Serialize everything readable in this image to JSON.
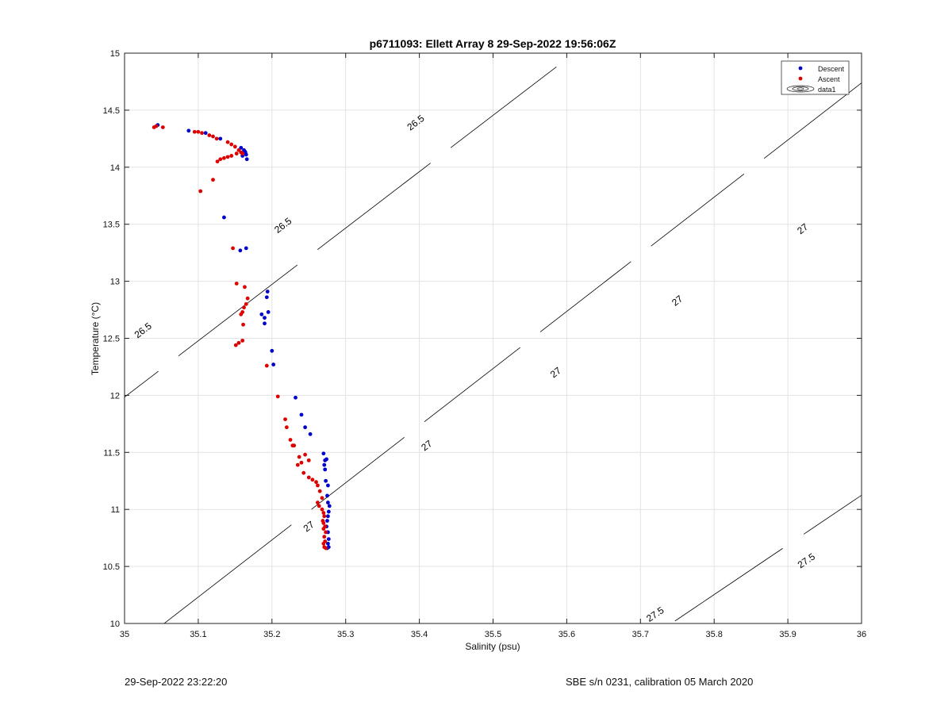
{
  "chart_data": {
    "type": "scatter",
    "title": "p6711093: Ellett Array 8 29-Sep-2022 19:56:06Z",
    "xlabel": "Salinity (psu)",
    "ylabel": "Temperature (°C)",
    "xlim": [
      35,
      36
    ],
    "ylim": [
      10,
      15
    ],
    "xticks": [
      "35",
      "35.1",
      "35.2",
      "35.3",
      "35.4",
      "35.5",
      "35.6",
      "35.7",
      "35.8",
      "35.9",
      "36"
    ],
    "yticks": [
      "10",
      "10.5",
      "11",
      "11.5",
      "12",
      "12.5",
      "13",
      "13.5",
      "14",
      "14.5",
      "15"
    ],
    "grid": true,
    "legend": {
      "position": "top-right",
      "entries": [
        "Descent",
        "Ascent",
        "data1"
      ]
    },
    "series": [
      {
        "name": "Descent",
        "color": "#0000cc",
        "points": [
          [
            35.045,
            14.37
          ],
          [
            35.087,
            14.32
          ],
          [
            35.11,
            14.3
          ],
          [
            35.13,
            14.25
          ],
          [
            35.158,
            14.17
          ],
          [
            35.162,
            14.15
          ],
          [
            35.164,
            14.13
          ],
          [
            35.165,
            14.11
          ],
          [
            35.166,
            14.07
          ],
          [
            35.16,
            14.1
          ],
          [
            35.163,
            14.14
          ],
          [
            35.135,
            13.56
          ],
          [
            35.157,
            13.27
          ],
          [
            35.165,
            13.29
          ],
          [
            35.194,
            12.91
          ],
          [
            35.193,
            12.86
          ],
          [
            35.186,
            12.71
          ],
          [
            35.19,
            12.68
          ],
          [
            35.19,
            12.63
          ],
          [
            35.195,
            12.73
          ],
          [
            35.2,
            12.39
          ],
          [
            35.202,
            12.27
          ],
          [
            35.232,
            11.98
          ],
          [
            35.24,
            11.83
          ],
          [
            35.245,
            11.72
          ],
          [
            35.252,
            11.66
          ],
          [
            35.27,
            11.49
          ],
          [
            35.272,
            11.43
          ],
          [
            35.274,
            11.44
          ],
          [
            35.271,
            11.39
          ],
          [
            35.272,
            11.35
          ],
          [
            35.273,
            11.25
          ],
          [
            35.276,
            11.21
          ],
          [
            35.275,
            11.12
          ],
          [
            35.276,
            11.06
          ],
          [
            35.278,
            11.03
          ],
          [
            35.277,
            10.98
          ],
          [
            35.276,
            10.94
          ],
          [
            35.275,
            10.9
          ],
          [
            35.274,
            10.85
          ],
          [
            35.276,
            10.8
          ],
          [
            35.277,
            10.74
          ],
          [
            35.276,
            10.7
          ],
          [
            35.277,
            10.67
          ],
          [
            35.275,
            10.66
          ]
        ]
      },
      {
        "name": "Ascent",
        "color": "#dd0000",
        "points": [
          [
            35.04,
            14.35
          ],
          [
            35.043,
            14.36
          ],
          [
            35.052,
            14.35
          ],
          [
            35.095,
            14.31
          ],
          [
            35.1,
            14.31
          ],
          [
            35.105,
            14.3
          ],
          [
            35.115,
            14.28
          ],
          [
            35.12,
            14.27
          ],
          [
            35.125,
            14.25
          ],
          [
            35.14,
            14.22
          ],
          [
            35.145,
            14.2
          ],
          [
            35.15,
            14.18
          ],
          [
            35.155,
            14.15
          ],
          [
            35.158,
            14.13
          ],
          [
            35.16,
            14.12
          ],
          [
            35.152,
            14.12
          ],
          [
            35.145,
            14.1
          ],
          [
            35.14,
            14.09
          ],
          [
            35.135,
            14.08
          ],
          [
            35.13,
            14.07
          ],
          [
            35.126,
            14.05
          ],
          [
            35.12,
            13.89
          ],
          [
            35.103,
            13.79
          ],
          [
            35.147,
            13.29
          ],
          [
            35.152,
            12.98
          ],
          [
            35.163,
            12.95
          ],
          [
            35.167,
            12.85
          ],
          [
            35.165,
            12.8
          ],
          [
            35.162,
            12.77
          ],
          [
            35.16,
            12.73
          ],
          [
            35.158,
            12.71
          ],
          [
            35.161,
            12.62
          ],
          [
            35.16,
            12.48
          ],
          [
            35.155,
            12.46
          ],
          [
            35.151,
            12.44
          ],
          [
            35.193,
            12.26
          ],
          [
            35.208,
            11.99
          ],
          [
            35.218,
            11.79
          ],
          [
            35.22,
            11.72
          ],
          [
            35.225,
            11.61
          ],
          [
            35.228,
            11.56
          ],
          [
            35.23,
            11.56
          ],
          [
            35.237,
            11.46
          ],
          [
            35.235,
            11.39
          ],
          [
            35.24,
            11.41
          ],
          [
            35.245,
            11.48
          ],
          [
            35.25,
            11.43
          ],
          [
            35.243,
            11.32
          ],
          [
            35.25,
            11.28
          ],
          [
            35.255,
            11.26
          ],
          [
            35.26,
            11.24
          ],
          [
            35.262,
            11.21
          ],
          [
            35.265,
            11.16
          ],
          [
            35.268,
            11.1
          ],
          [
            35.262,
            11.06
          ],
          [
            35.264,
            11.03
          ],
          [
            35.268,
            11.0
          ],
          [
            35.27,
            10.97
          ],
          [
            35.271,
            10.94
          ],
          [
            35.269,
            10.9
          ],
          [
            35.27,
            10.88
          ],
          [
            35.272,
            10.85
          ],
          [
            35.27,
            10.83
          ],
          [
            35.273,
            10.8
          ],
          [
            35.271,
            10.76
          ],
          [
            35.272,
            10.72
          ],
          [
            35.27,
            10.7
          ],
          [
            35.271,
            10.67
          ],
          [
            35.273,
            10.66
          ]
        ]
      }
    ],
    "contours": [
      {
        "level": "26.5",
        "line": [
          [
            34.9,
            11.49
          ],
          [
            36.1,
            17.42
          ]
        ],
        "labels": [
          [
            35.025,
            12.57
          ],
          [
            35.215,
            13.49
          ],
          [
            35.395,
            14.39
          ],
          [
            35.565,
            15.24
          ]
        ]
      },
      {
        "level": "27",
        "line": [
          [
            34.9,
            9.23
          ],
          [
            36.1,
            15.24
          ]
        ],
        "labels": [
          [
            35.045,
            9.84
          ],
          [
            35.25,
            10.85
          ],
          [
            35.41,
            11.56
          ],
          [
            35.585,
            12.2
          ],
          [
            35.75,
            12.83
          ],
          [
            35.92,
            13.46
          ]
        ]
      },
      {
        "level": "27.5",
        "line": [
          [
            35.65,
            9.6
          ],
          [
            36.1,
            11.56
          ]
        ],
        "labels": [
          [
            35.72,
            10.08
          ],
          [
            35.925,
            10.55
          ]
        ]
      }
    ]
  },
  "footer": {
    "left": "29-Sep-2022 23:22:20",
    "right": "SBE s/n 0231, calibration 05 March 2020"
  }
}
